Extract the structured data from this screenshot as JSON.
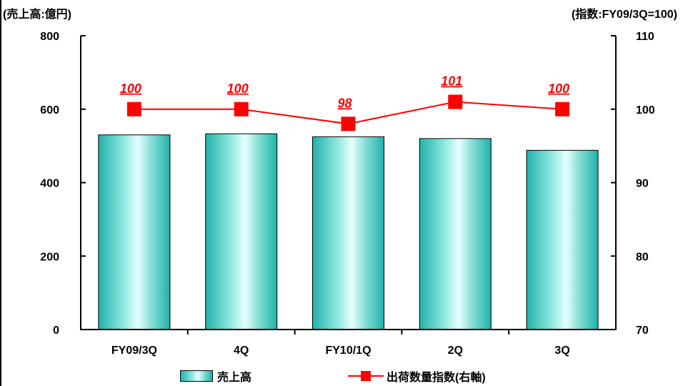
{
  "chart_data": {
    "type": "bar",
    "left_axis_unit": "(売上高:億円)",
    "right_axis_unit": "(指数:FY09/3Q=100)",
    "categories": [
      "FY09/3Q",
      "4Q",
      "FY10/1Q",
      "2Q",
      "3Q"
    ],
    "ylim_left": [
      0,
      800
    ],
    "yticks_left": [
      "0",
      "200",
      "400",
      "600",
      "800"
    ],
    "ylim_right": [
      70,
      110
    ],
    "yticks_right": [
      "70",
      "80",
      "90",
      "100",
      "110"
    ],
    "series": [
      {
        "name": "売上高",
        "type": "bar",
        "axis": "left",
        "values": [
          530,
          533,
          525,
          520,
          488
        ],
        "color": "#20b2aa"
      },
      {
        "name": "出荷数量指数(右軸)",
        "type": "line",
        "axis": "right",
        "values": [
          100,
          100,
          98,
          101,
          100
        ],
        "data_labels": [
          "100",
          "100",
          "98",
          "101",
          "100"
        ],
        "color": "#ff0000"
      }
    ],
    "grid": false,
    "legend_position": "bottom"
  }
}
